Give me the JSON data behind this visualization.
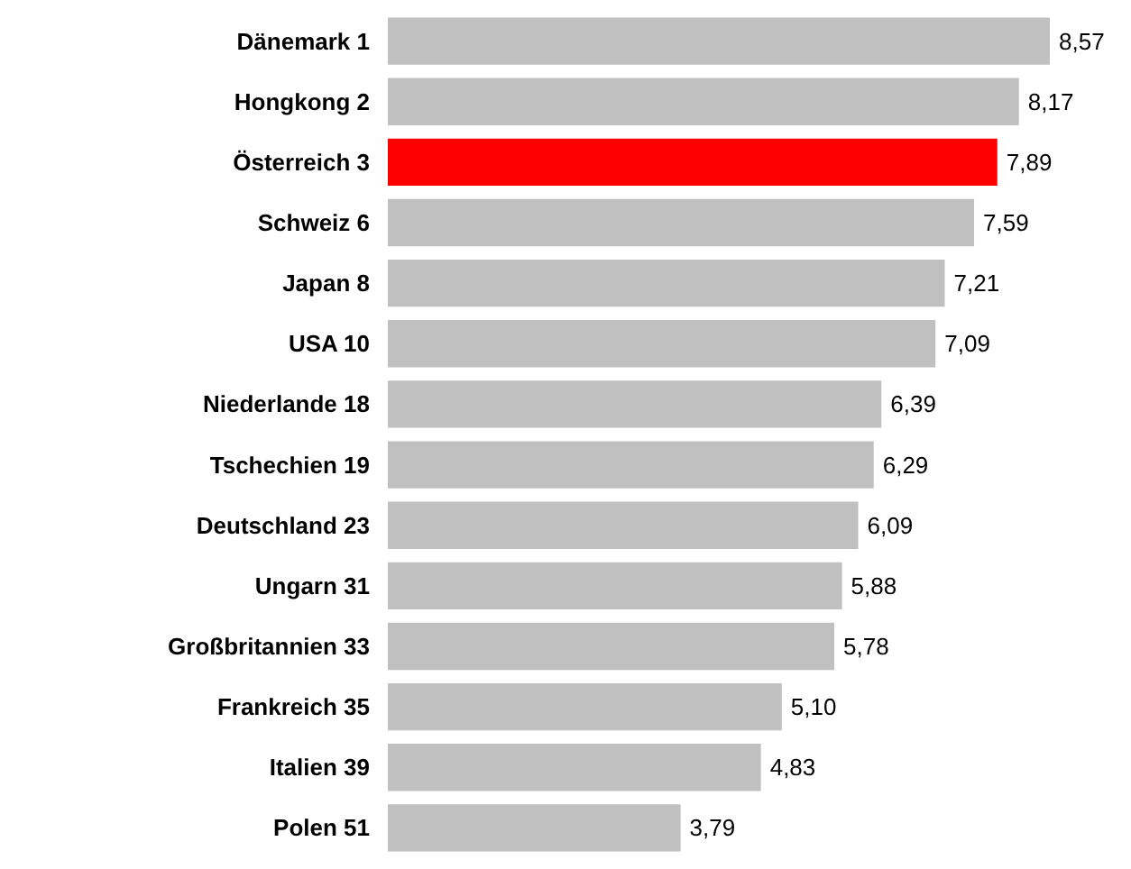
{
  "chart_data": {
    "type": "bar",
    "orientation": "horizontal",
    "categories": [
      "Dänemark 1",
      "Hongkong 2",
      "Österreich 3",
      "Schweiz 6",
      "Japan 8",
      "USA 10",
      "Niederlande 18",
      "Tschechien 19",
      "Deutschland 23",
      "Ungarn 31",
      "Großbritannien 33",
      "Frankreich 35",
      "Italien 39",
      "Polen 51"
    ],
    "values": [
      8.57,
      8.17,
      7.89,
      7.59,
      7.21,
      7.09,
      6.39,
      6.29,
      6.09,
      5.88,
      5.78,
      5.1,
      4.83,
      3.79
    ],
    "value_labels": [
      "8,57",
      "8,17",
      "7,89",
      "7,59",
      "7,21",
      "7,09",
      "6,39",
      "6,29",
      "6,09",
      "5,88",
      "5,78",
      "5,10",
      "4,83",
      "3,79"
    ],
    "colors": [
      "#c0c0c0",
      "#c0c0c0",
      "#ff0000",
      "#c0c0c0",
      "#c0c0c0",
      "#c0c0c0",
      "#c0c0c0",
      "#c0c0c0",
      "#c0c0c0",
      "#c0c0c0",
      "#c0c0c0",
      "#c0c0c0",
      "#c0c0c0",
      "#c0c0c0"
    ]
  }
}
